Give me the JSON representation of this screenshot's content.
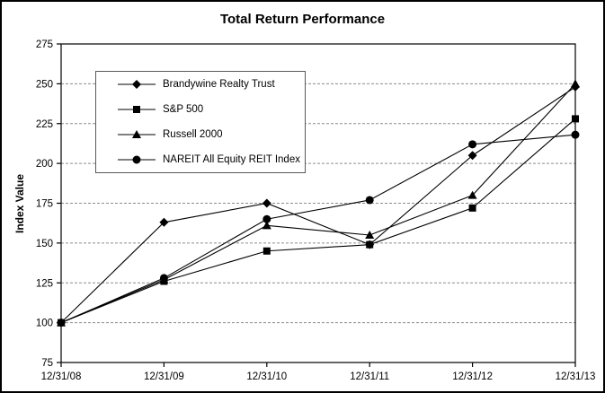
{
  "chart_data": {
    "type": "line",
    "title": "Total Return Performance",
    "xlabel": "",
    "ylabel": "Index Value",
    "ylim": [
      75,
      275
    ],
    "ytick_step": 25,
    "grid": "horizontal-dashed",
    "legend_position": "upper-left-inside",
    "categories": [
      "12/31/08",
      "12/31/09",
      "12/31/10",
      "12/31/11",
      "12/31/12",
      "12/31/13"
    ],
    "series": [
      {
        "name": "Brandywine Realty Trust",
        "marker": "diamond",
        "color": "#000000",
        "values": [
          100,
          163,
          175,
          149,
          205,
          248
        ]
      },
      {
        "name": "S&P 500",
        "marker": "square",
        "color": "#000000",
        "values": [
          100,
          126,
          145,
          149,
          172,
          228
        ]
      },
      {
        "name": "Russell 2000",
        "marker": "triangle",
        "color": "#000000",
        "values": [
          100,
          127,
          161,
          155,
          180,
          250
        ]
      },
      {
        "name": "NAREIT All Equity REIT Index",
        "marker": "circle",
        "color": "#000000",
        "values": [
          100,
          128,
          165,
          177,
          212,
          218
        ]
      }
    ],
    "colors": {
      "gridline": "#8c8c8c",
      "axis": "#000000",
      "text": "#000000",
      "background": "#ffffff"
    }
  }
}
